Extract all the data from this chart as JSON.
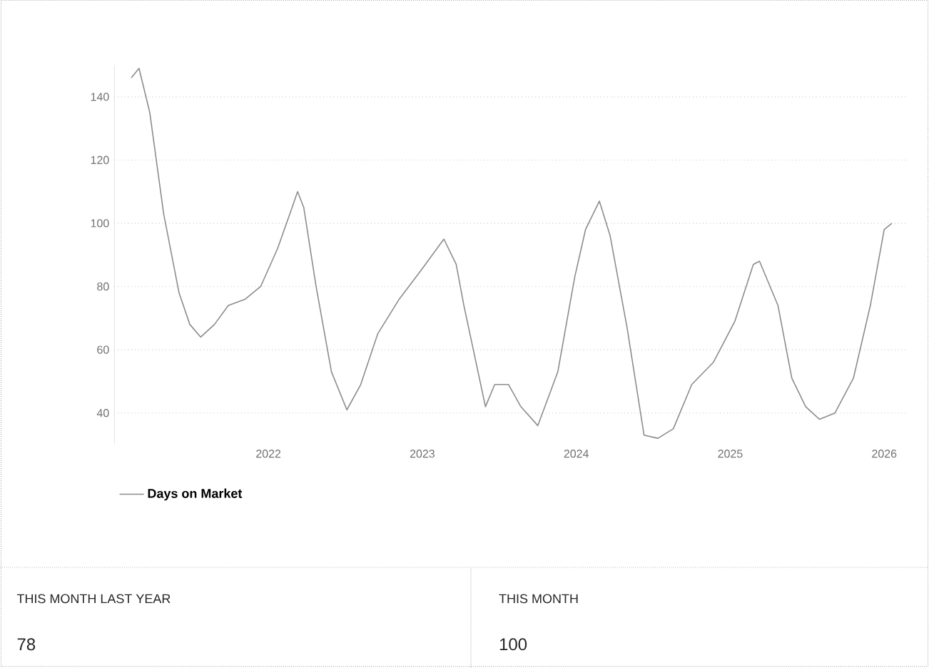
{
  "chart_data": [
    {
      "type": "line",
      "x": [
        2021.11,
        2021.16,
        2021.23,
        2021.32,
        2021.42,
        2021.49,
        2021.56,
        2021.65,
        2021.74,
        2021.85,
        2021.95,
        2022.06,
        2022.14,
        2022.19,
        2022.23,
        2022.31,
        2022.41,
        2022.51,
        2022.6,
        2022.71,
        2022.85,
        2022.99,
        2023.14,
        2023.22,
        2023.27,
        2023.34,
        2023.41,
        2023.47,
        2023.56,
        2023.64,
        2023.75,
        2023.88,
        2023.99,
        2024.06,
        2024.15,
        2024.22,
        2024.33,
        2024.44,
        2024.53,
        2024.63,
        2024.75,
        2024.89,
        2025.03,
        2025.15,
        2025.19,
        2025.31,
        2025.4,
        2025.49,
        2025.58,
        2025.68,
        2025.8,
        2025.91,
        2026.0,
        2026.05
      ],
      "series": [
        {
          "name": "Days on Market",
          "color": "#8c8c8c",
          "values": [
            146,
            149,
            135,
            103,
            78,
            68,
            64,
            68,
            74,
            76,
            80,
            92,
            103,
            110,
            105,
            80,
            53,
            41,
            49,
            65,
            76,
            85,
            95,
            87,
            74,
            58,
            42,
            49,
            49,
            42,
            36,
            53,
            83,
            98,
            107,
            96,
            67,
            33,
            32,
            35,
            49,
            56,
            69,
            87,
            88,
            74,
            51,
            42,
            38,
            40,
            51,
            74,
            98,
            100
          ]
        }
      ],
      "xlim": [
        2021.0,
        2026.15
      ],
      "ylim": [
        30,
        150
      ],
      "xticks": [
        2022,
        2023,
        2024,
        2025,
        2026
      ],
      "yticks": [
        40,
        60,
        80,
        100,
        120,
        140
      ],
      "grid": "y",
      "legend": "bottom left"
    },
    {
      "type": "other",
      "annotations": [
        "THIS MONTH LAST YEAR",
        "78",
        "THIS MONTH",
        "100"
      ]
    }
  ]
}
